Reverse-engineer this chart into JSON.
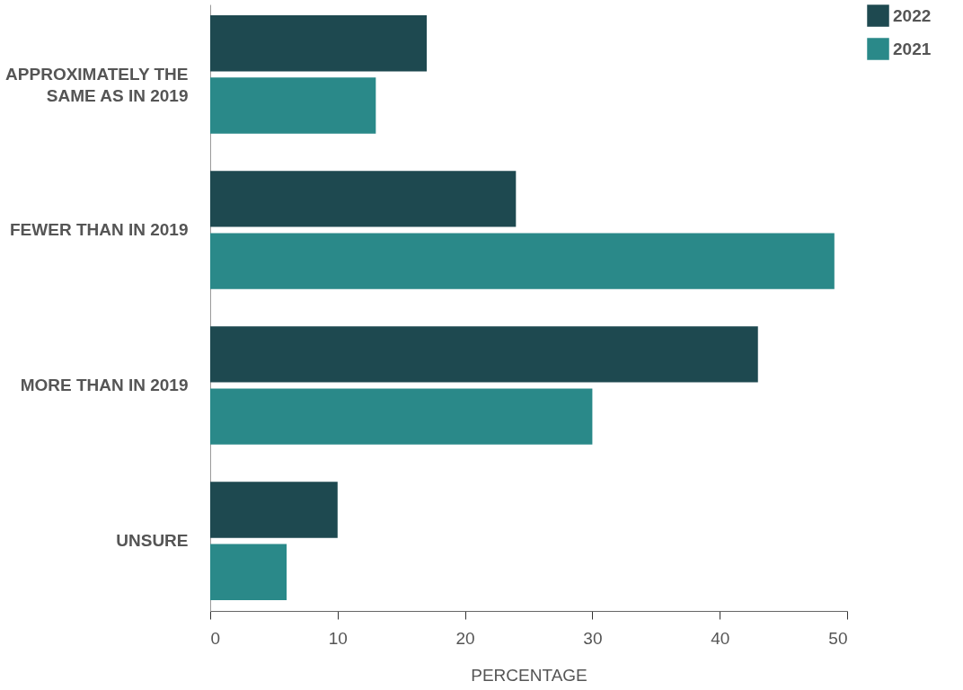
{
  "chart_data": {
    "type": "bar",
    "orientation": "horizontal",
    "categories": [
      "APPROXIMATELY THE SAME AS IN 2019",
      "FEWER THAN  IN 2019",
      "MORE THAN IN 2019",
      "UNSURE"
    ],
    "series": [
      {
        "name": "2022",
        "color": "#1e4950",
        "values": [
          17,
          24,
          43,
          10
        ]
      },
      {
        "name": "2021",
        "color": "#2a8989",
        "values": [
          13,
          49,
          30,
          6
        ]
      }
    ],
    "xlabel": "PERCENTAGE",
    "xlim": [
      0,
      50
    ],
    "xticks": [
      0,
      10,
      20,
      30,
      40,
      50
    ],
    "legend": "top right"
  }
}
